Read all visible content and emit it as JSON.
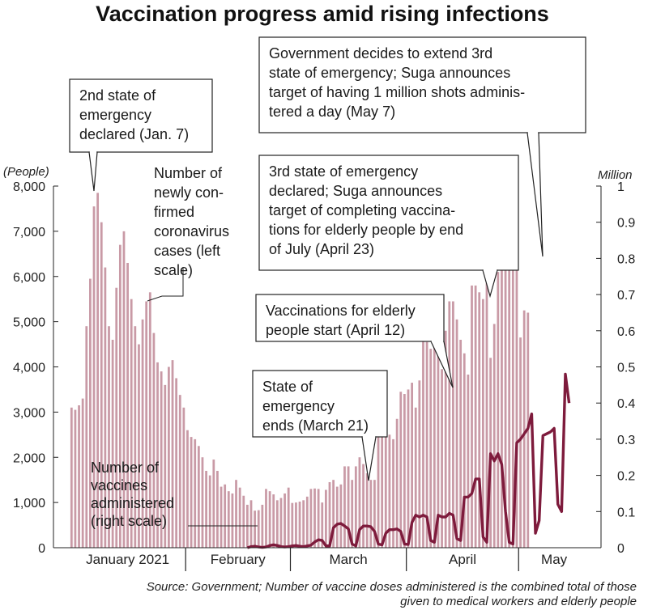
{
  "title": "Vaccination progress amid rising infections",
  "source_line1": "Source: Government; Number of vaccine doses administered is the combined total of those",
  "source_line2": "given to medical workers and elderly people",
  "colors": {
    "bars": "#c99aa6",
    "line": "#7e1b3c",
    "text": "#1a1a1a"
  },
  "chart_data": {
    "type": "bar+line",
    "title": "Vaccination progress amid rising infections",
    "left_axis": {
      "unit_label": "(People)",
      "range": [
        0,
        8000
      ],
      "ticks": [
        0,
        1000,
        2000,
        3000,
        4000,
        5000,
        6000,
        7000,
        8000
      ],
      "tick_labels": [
        "0",
        "1,000",
        "2,000",
        "3,000",
        "4,000",
        "5,000",
        "6,000",
        "7,000",
        "8,000"
      ]
    },
    "right_axis": {
      "unit_label": "Million",
      "range": [
        0,
        1
      ],
      "ticks": [
        0,
        0.1,
        0.2,
        0.3,
        0.4,
        0.5,
        0.6,
        0.7,
        0.8,
        0.9,
        1
      ],
      "tick_labels": [
        "0",
        "0.1",
        "0.2",
        "0.3",
        "0.4",
        "0.5",
        "0.6",
        "0.7",
        "0.8",
        "0.9",
        "1"
      ]
    },
    "x_axis": {
      "start_date": "2021-01-01",
      "end_date": "2021-05-19",
      "month_labels": [
        "January 2021",
        "February",
        "March",
        "April",
        "May"
      ]
    },
    "series": [
      {
        "name": "Number of newly confirmed coronavirus cases (left scale)",
        "kind": "bar",
        "axis": "left",
        "values": [
          3100,
          3050,
          3150,
          3300,
          4900,
          5950,
          7550,
          7850,
          7200,
          6200,
          4900,
          4600,
          5750,
          6700,
          7000,
          6300,
          5500,
          4900,
          4500,
          5050,
          5450,
          5650,
          4750,
          4100,
          3900,
          3600,
          4000,
          4150,
          3750,
          3380,
          3100,
          2600,
          2450,
          2400,
          2250,
          2000,
          1700,
          1600,
          1950,
          1700,
          1350,
          1400,
          1250,
          1200,
          1500,
          1330,
          1150,
          950,
          1050,
          820,
          830,
          950,
          1300,
          1250,
          1180,
          1050,
          1100,
          1200,
          1330,
          990,
          1000,
          1020,
          1050,
          1130,
          1300,
          1310,
          1300,
          1000,
          1280,
          1450,
          1500,
          1350,
          1400,
          1800,
          1800,
          1500,
          1800,
          2000,
          1850,
          1650,
          1500,
          1500,
          2800,
          2800,
          2700,
          2500,
          2400,
          2850,
          3450,
          3400,
          3500,
          3650,
          3100,
          3700,
          4650,
          4550,
          4400,
          4700,
          5100,
          3950,
          4800,
          5450,
          5450,
          5050,
          4600,
          4300,
          3830,
          5800,
          5800,
          5650,
          5500,
          5850,
          4200,
          4950,
          6100,
          6950,
          7000,
          6550,
          6750,
          6450,
          4650,
          5250,
          5200
        ]
      },
      {
        "name": "Number of vaccines administered (right scale)",
        "kind": "line",
        "axis": "right",
        "start_date": "2021-02-17",
        "values": [
          0,
          0.003,
          0.004,
          0.002,
          0.001,
          0.002,
          0.006,
          0.008,
          0.006,
          0.003,
          0.002,
          0.003,
          0.005,
          0.006,
          0.004,
          0.003,
          0.005,
          0.007,
          0.016,
          0.022,
          0.02,
          0.005,
          0.005,
          0.055,
          0.065,
          0.067,
          0.06,
          0.052,
          0.01,
          0.005,
          0.05,
          0.06,
          0.06,
          0.058,
          0.045,
          0.01,
          0.008,
          0.04,
          0.05,
          0.05,
          0.052,
          0.045,
          0.01,
          0.009,
          0.07,
          0.09,
          0.085,
          0.09,
          0.085,
          0.02,
          0.015,
          0.09,
          0.085,
          0.085,
          0.095,
          0.09,
          0.025,
          0.02,
          0.14,
          0.14,
          0.15,
          0.19,
          0.19,
          0.03,
          0.015,
          0.26,
          0.24,
          0.26,
          0.23,
          0.1,
          0.015,
          0.01,
          0.29,
          0.3,
          0.315,
          0.33,
          0.37,
          0.04,
          0.075,
          0.31,
          0.315,
          0.32,
          0.33,
          0.12,
          0.1,
          0.48,
          0.4
        ]
      }
    ],
    "series_labels": {
      "cases": [
        "Number of",
        "newly con-",
        "firmed",
        "coronavirus",
        "cases (left",
        "scale)"
      ],
      "vaccines": [
        "Number of",
        "vaccines",
        "administered",
        "(right scale)"
      ]
    },
    "annotations": [
      {
        "date": "2021-01-07",
        "lines": [
          "2nd state of",
          "emergency",
          "declared (Jan. 7)"
        ]
      },
      {
        "date": "2021-03-21",
        "lines": [
          "State of",
          "emergency",
          "ends (March 21)"
        ]
      },
      {
        "date": "2021-04-12",
        "lines": [
          "Vaccinations for elderly",
          "people start (April 12)"
        ]
      },
      {
        "date": "2021-04-23",
        "lines": [
          "3rd state of emergency",
          "declared; Suga announces",
          "target of completing vaccina-",
          "tions for elderly people by end",
          "of July (April 23)"
        ]
      },
      {
        "date": "2021-05-07",
        "lines": [
          "Government decides to extend 3rd",
          "state of emergency; Suga announces",
          "target of having 1 million shots adminis-",
          "tered a day (May 7)"
        ]
      }
    ]
  }
}
